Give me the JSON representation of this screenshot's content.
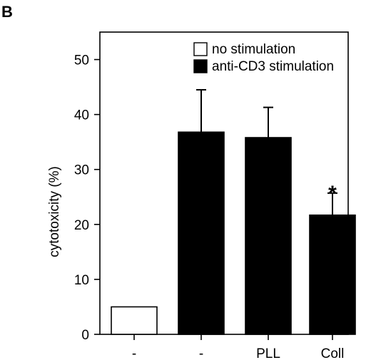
{
  "panel_label": "B",
  "chart_data": {
    "type": "bar",
    "ylabel": "cytotoxicity (%)",
    "xlabel": "",
    "ylim": [
      0,
      55
    ],
    "yticks": [
      0,
      10,
      20,
      30,
      40,
      50
    ],
    "categories": [
      "-",
      "-",
      "PLL",
      "Coll"
    ],
    "bars": [
      {
        "category": "-",
        "value": 5,
        "error": 0,
        "series": "no stimulation",
        "color": "#ffffff"
      },
      {
        "category": "-",
        "value": 36.8,
        "error": 7.7,
        "series": "anti-CD3 stimulation",
        "color": "#000000"
      },
      {
        "category": "PLL",
        "value": 35.8,
        "error": 5.5,
        "series": "anti-CD3 stimulation",
        "color": "#000000"
      },
      {
        "category": "Coll",
        "value": 21.7,
        "error": 4.0,
        "series": "anti-CD3 stimulation",
        "color": "#000000"
      }
    ],
    "legend": {
      "placement": "top-right",
      "entries": [
        {
          "label": "no stimulation",
          "color": "#ffffff"
        },
        {
          "label": "anti-CD3 stimulation",
          "color": "#000000"
        }
      ]
    },
    "annotations": [
      {
        "category_index": 3,
        "text": "*"
      }
    ],
    "grid": false
  }
}
